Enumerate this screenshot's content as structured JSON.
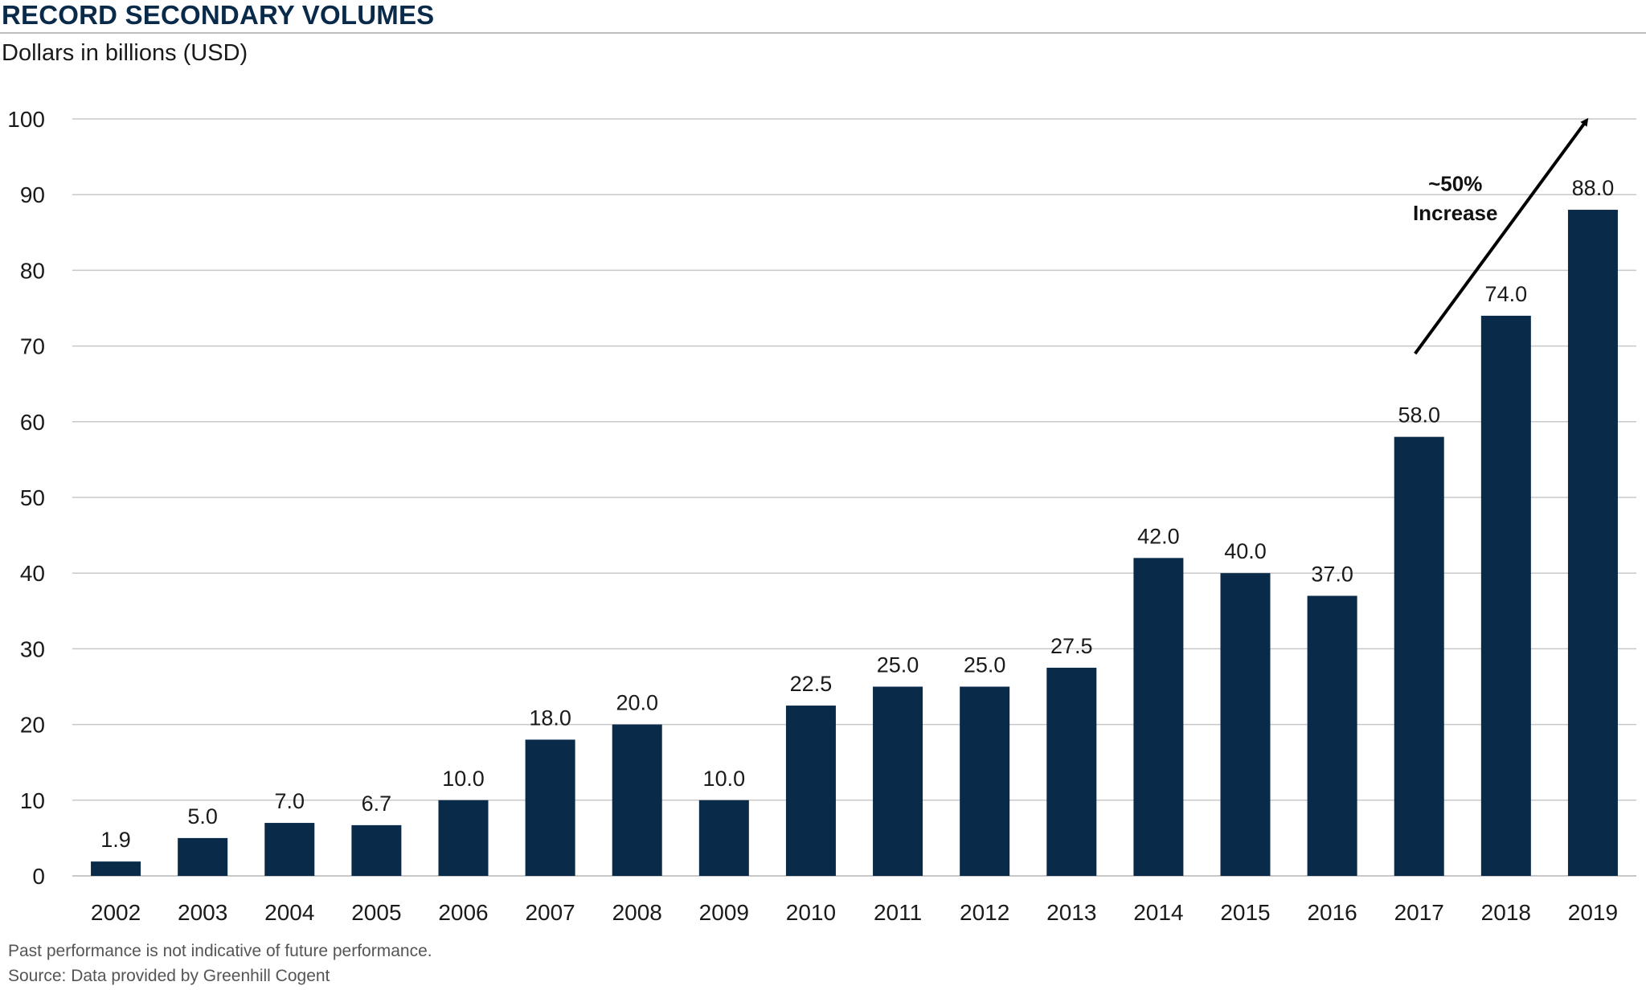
{
  "header": {
    "title": "RECORD SECONDARY VOLUMES",
    "subtitle": "Dollars in billions (USD)"
  },
  "footer": {
    "disclaimer": "Past performance is not indicative of future performance.",
    "source": "Source: Data provided by Greenhill Cogent"
  },
  "colors": {
    "bar": "#0a2a4a",
    "grid": "#c8c8c8",
    "title": "#0a2a4a"
  },
  "chart_data": {
    "type": "bar",
    "title": "RECORD SECONDARY VOLUMES",
    "ylabel": "Dollars in billions (USD)",
    "xlabel": "",
    "categories": [
      "2002",
      "2003",
      "2004",
      "2005",
      "2006",
      "2007",
      "2008",
      "2009",
      "2010",
      "2011",
      "2012",
      "2013",
      "2014",
      "2015",
      "2016",
      "2017",
      "2018",
      "2019"
    ],
    "values": [
      1.9,
      5.0,
      7.0,
      6.7,
      10.0,
      18.0,
      20.0,
      10.0,
      22.5,
      25.0,
      25.0,
      27.5,
      42.0,
      40.0,
      37.0,
      58.0,
      74.0,
      88.0
    ],
    "data_labels": [
      "1.9",
      "5.0",
      "7.0",
      "6.7",
      "10.0",
      "18.0",
      "20.0",
      "10.0",
      "22.5",
      "25.0",
      "25.0",
      "27.5",
      "42.0",
      "40.0",
      "37.0",
      "58.0",
      "74.0",
      "88.0"
    ],
    "ylim": [
      0,
      100
    ],
    "yticks": [
      0,
      10,
      20,
      30,
      40,
      50,
      60,
      70,
      80,
      90,
      100
    ],
    "grid": true,
    "legend": "none",
    "annotation": {
      "line1": "~50%",
      "line2": "Increase",
      "arrow_from_category": "2017",
      "arrow_to_category": "2019"
    }
  }
}
